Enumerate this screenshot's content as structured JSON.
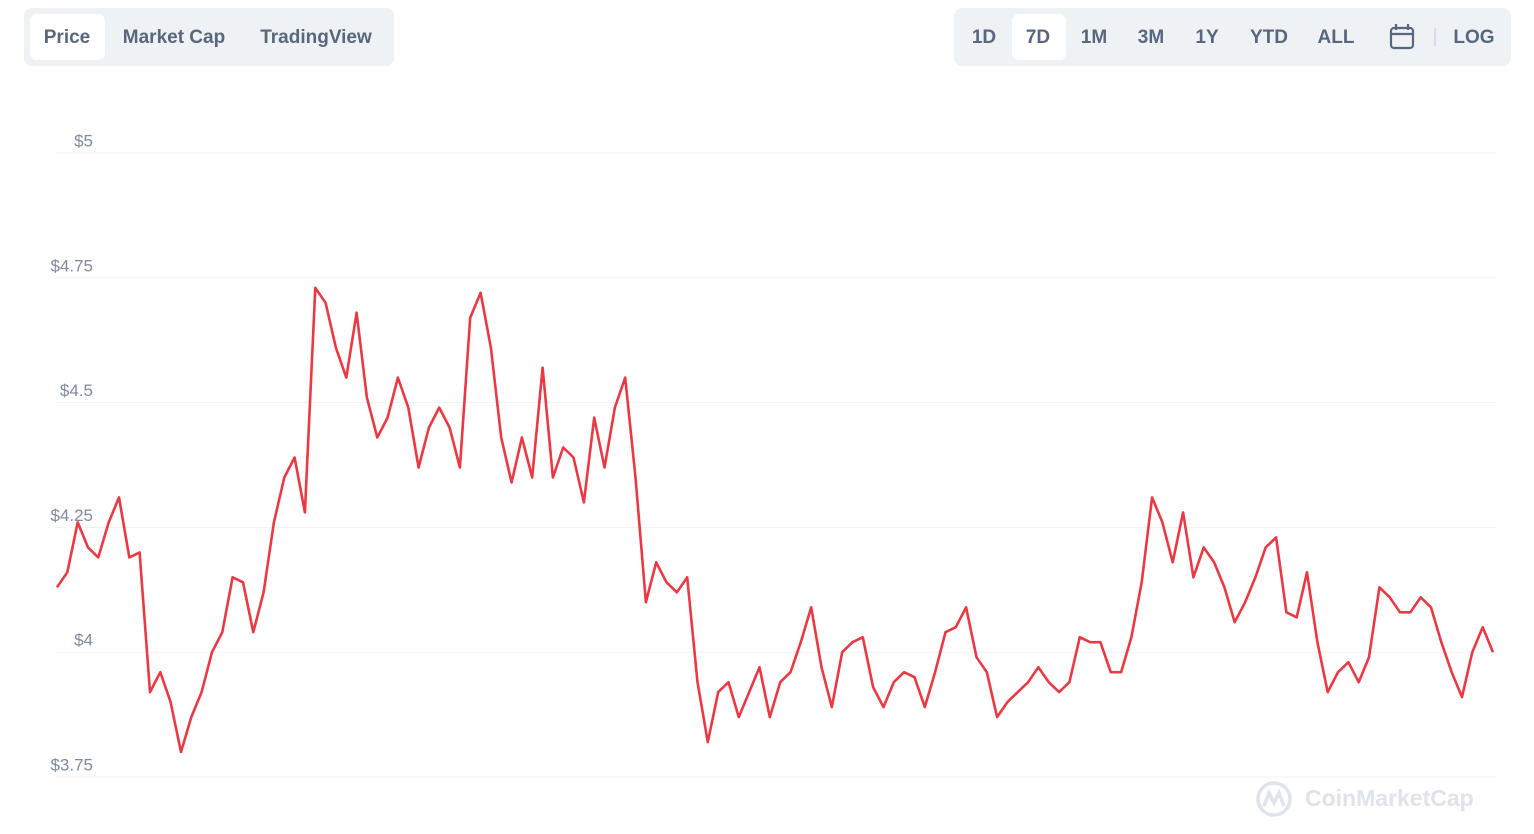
{
  "toolbar": {
    "tabs": [
      "Price",
      "Market Cap",
      "TradingView"
    ],
    "ranges": [
      "1D",
      "7D",
      "1M",
      "3M",
      "1Y",
      "YTD",
      "ALL"
    ],
    "scale": "LOG"
  },
  "watermark": "CoinMarketCap",
  "chart_data": {
    "type": "line",
    "series": [
      {
        "color": "#ea3943",
        "values": [
          4.13,
          4.16,
          4.26,
          4.21,
          4.19,
          4.26,
          4.31,
          4.19,
          4.2,
          3.92,
          3.96,
          3.9,
          3.8,
          3.87,
          3.92,
          4.0,
          4.04,
          4.15,
          4.14,
          4.04,
          4.12,
          4.26,
          4.35,
          4.39,
          4.28,
          4.73,
          4.7,
          4.61,
          4.55,
          4.68,
          4.51,
          4.43,
          4.47,
          4.55,
          4.49,
          4.37,
          4.45,
          4.49,
          4.45,
          4.37,
          4.67,
          4.72,
          4.61,
          4.43,
          4.34,
          4.43,
          4.35,
          4.57,
          4.35,
          4.41,
          4.39,
          4.3,
          4.47,
          4.37,
          4.49,
          4.55,
          4.35,
          4.1,
          4.18,
          4.14,
          4.12,
          4.15,
          3.94,
          3.82,
          3.92,
          3.94,
          3.87,
          3.92,
          3.97,
          3.87,
          3.94,
          3.96,
          4.02,
          4.09,
          3.97,
          3.89,
          4.0,
          4.02,
          4.03,
          3.93,
          3.89,
          3.94,
          3.96,
          3.95,
          3.89,
          3.96,
          4.04,
          4.05,
          4.09,
          3.99,
          3.96,
          3.87,
          3.9,
          3.92,
          3.94,
          3.97,
          3.94,
          3.92,
          3.94,
          4.03,
          4.02,
          4.02,
          3.96,
          3.96,
          4.03,
          4.14,
          4.31,
          4.26,
          4.18,
          4.28,
          4.15,
          4.21,
          4.18,
          4.13,
          4.06,
          4.1,
          4.15,
          4.21,
          4.23,
          4.08,
          4.07,
          4.16,
          4.02,
          3.92,
          3.96,
          3.98,
          3.94,
          3.99,
          4.13,
          4.11,
          4.08,
          4.08,
          4.11,
          4.09,
          4.02,
          3.96,
          3.91,
          4.0,
          4.05,
          4.0
        ]
      }
    ],
    "ylim": [
      3.75,
      5
    ],
    "yticks": [
      {
        "value": 3.75,
        "label": "$3.75"
      },
      {
        "value": 4,
        "label": "$4"
      },
      {
        "value": 4.25,
        "label": "$4.25"
      },
      {
        "value": 4.5,
        "label": "$4.5"
      },
      {
        "value": 4.75,
        "label": "$4.75"
      },
      {
        "value": 5,
        "label": "$5"
      }
    ],
    "grid": true
  }
}
